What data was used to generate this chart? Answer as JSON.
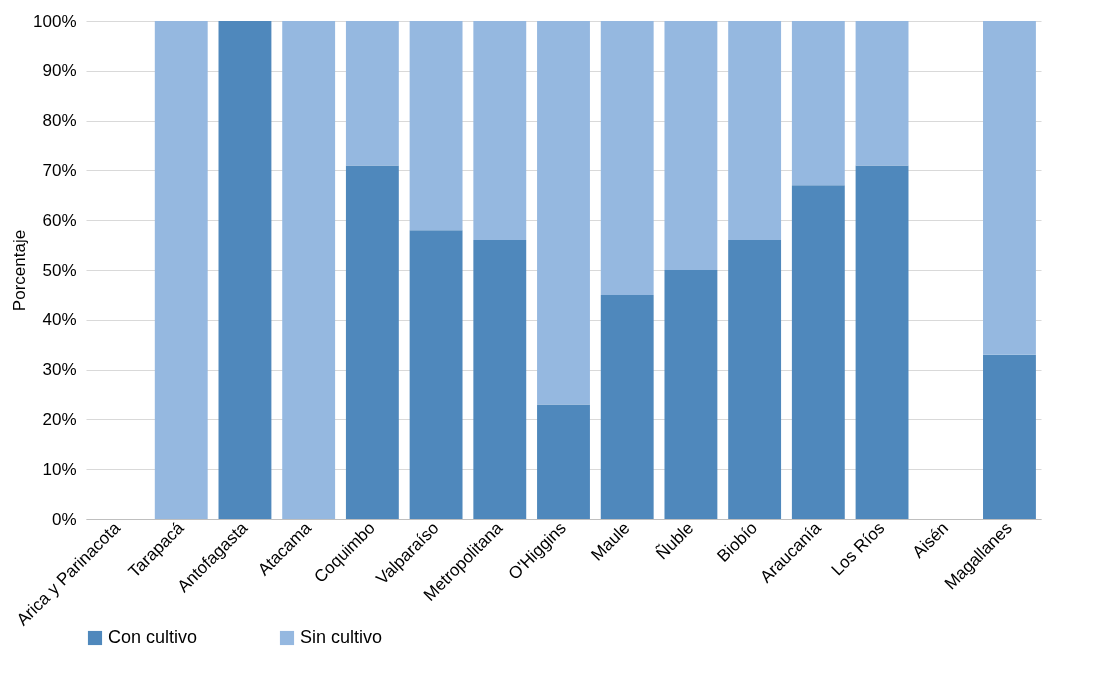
{
  "chart_data": {
    "type": "bar",
    "stacked": true,
    "ylabel": "Porcentaje",
    "categories": [
      "Arica y Parinacota",
      "Tarapacá",
      "Antofagasta",
      "Atacama",
      "Coquimbo",
      "Valparaíso",
      "Metropolitana",
      "O'Higgins",
      "Maule",
      "Ñuble",
      "Biobío",
      "Araucanía",
      "Los Ríos",
      "Aisén",
      "Magallanes"
    ],
    "series": [
      {
        "name": "Con cultivo",
        "color": "#4f88bc",
        "values": [
          null,
          0,
          100,
          0,
          71,
          58,
          56,
          23,
          45,
          50,
          56,
          67,
          71,
          null,
          33
        ]
      },
      {
        "name": "Sin cultivo",
        "color": "#95b8e0",
        "values": [
          null,
          100,
          0,
          100,
          29,
          42,
          44,
          77,
          55,
          50,
          44,
          33,
          29,
          null,
          67
        ]
      }
    ],
    "ylim": [
      0,
      100
    ],
    "yticks": [
      {
        "value": 0,
        "label": "0%"
      },
      {
        "value": 10,
        "label": "10%"
      },
      {
        "value": 20,
        "label": "20%"
      },
      {
        "value": 30,
        "label": "30%"
      },
      {
        "value": 40,
        "label": "40%"
      },
      {
        "value": 50,
        "label": "50%"
      },
      {
        "value": 60,
        "label": "60%"
      },
      {
        "value": 70,
        "label": "70%"
      },
      {
        "value": 80,
        "label": "80%"
      },
      {
        "value": 90,
        "label": "90%"
      },
      {
        "value": 100,
        "label": "100%"
      }
    ],
    "grid": "y",
    "legend": "bottom"
  }
}
